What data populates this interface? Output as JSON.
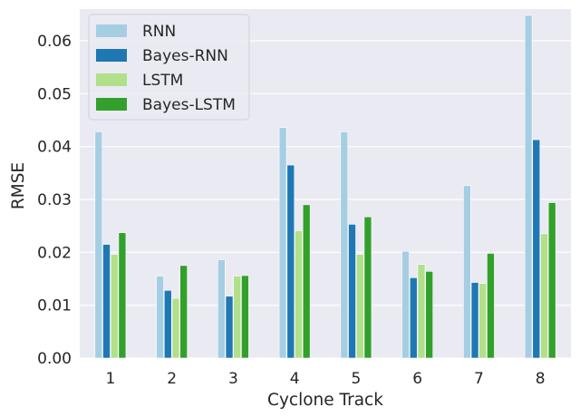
{
  "chart_data": {
    "type": "bar",
    "title": "",
    "xlabel": "Cyclone Track",
    "ylabel": "RMSE",
    "categories": [
      "1",
      "2",
      "3",
      "4",
      "5",
      "6",
      "7",
      "8"
    ],
    "ylim": [
      0,
      0.066
    ],
    "yticks": [
      0.0,
      0.01,
      0.02,
      0.03,
      0.04,
      0.05,
      0.06
    ],
    "ytick_labels": [
      "0.00",
      "0.01",
      "0.02",
      "0.03",
      "0.04",
      "0.05",
      "0.06"
    ],
    "grid": true,
    "legend_position": "top-left",
    "series": [
      {
        "name": "RNN",
        "color": "#a6cee3",
        "values": [
          0.0428,
          0.0155,
          0.0186,
          0.0436,
          0.0428,
          0.0202,
          0.0326,
          0.0648
        ]
      },
      {
        "name": "Bayes-RNN",
        "color": "#1f78b4",
        "values": [
          0.0215,
          0.0128,
          0.0117,
          0.0365,
          0.0253,
          0.0152,
          0.0143,
          0.0413
        ]
      },
      {
        "name": "LSTM",
        "color": "#b2df8a",
        "values": [
          0.0196,
          0.0113,
          0.0155,
          0.0241,
          0.0196,
          0.0177,
          0.0141,
          0.0235
        ]
      },
      {
        "name": "Bayes-LSTM",
        "color": "#33a02c",
        "values": [
          0.0237,
          0.0175,
          0.0156,
          0.029,
          0.0267,
          0.0164,
          0.0198,
          0.0294
        ]
      }
    ]
  }
}
